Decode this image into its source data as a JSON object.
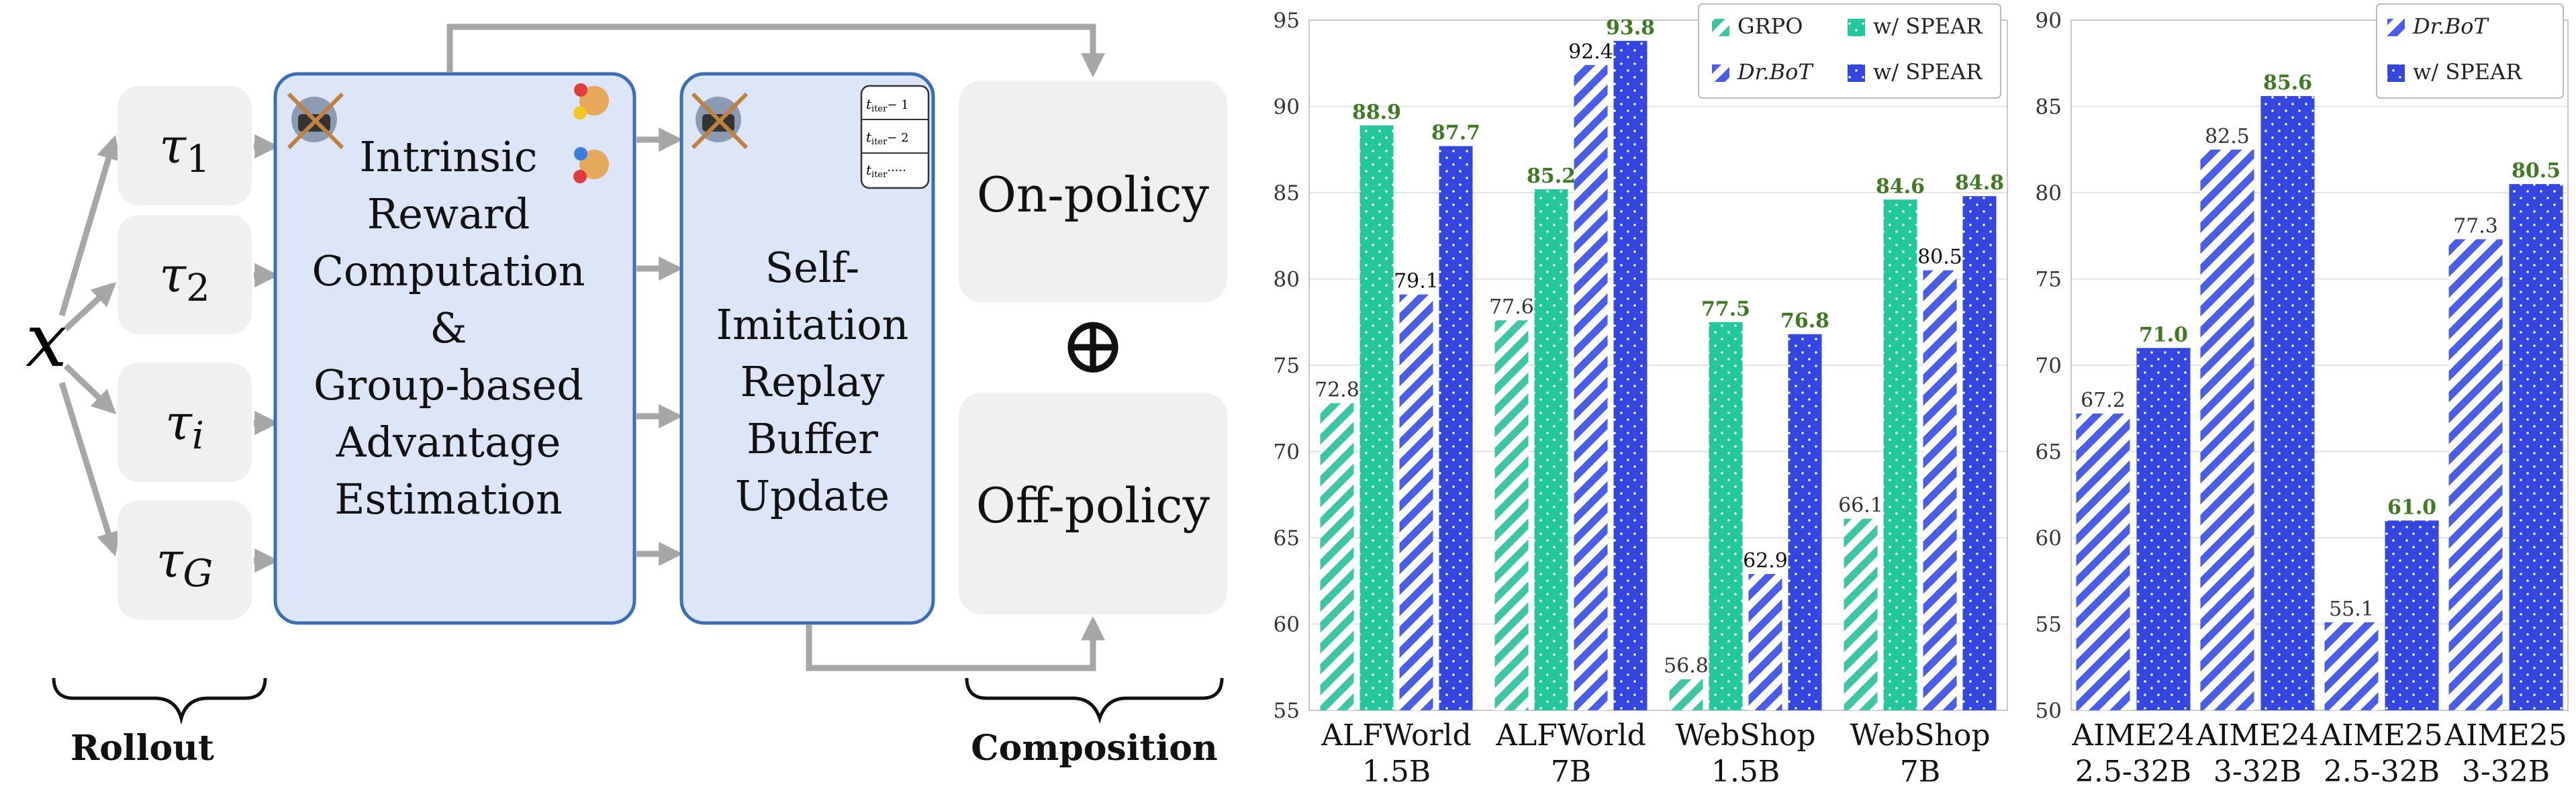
{
  "diagram": {
    "input_symbol": "x",
    "rollouts": [
      {
        "base": "τ",
        "sub": "1"
      },
      {
        "base": "τ",
        "sub": "2"
      },
      {
        "base": "τ",
        "sub": "i"
      },
      {
        "base": "τ",
        "sub": "G"
      }
    ],
    "rollout_label": "Rollout",
    "intrinsic_box": [
      "Intrinsic",
      "Reward",
      "Computation",
      "&",
      "Group-based",
      "Advantage",
      "Estimation"
    ],
    "replay_box": [
      "Self-",
      "Imitation",
      "Replay",
      "Buffer",
      "Update"
    ],
    "buffer_rows": [
      {
        "base": "t",
        "sub": "iter",
        "suffix": "− 1"
      },
      {
        "base": "t",
        "sub": "iter",
        "suffix": "− 2"
      },
      {
        "base": "t",
        "sub": "iter",
        "suffix": "·····"
      }
    ],
    "on_policy": "On-policy",
    "off_policy": "Off-policy",
    "composition_label": "Composition",
    "oplus": "⊕"
  },
  "colors": {
    "box_fill": "#dce6f8",
    "box_stroke": "#3b6fb5",
    "gray_box": "#f0f0f0",
    "arrow": "#a6a6a6",
    "grpo": "#3cc6a4",
    "grpo_spear": "#22c79b",
    "drbot": "#4a5de6",
    "drbot_spear": "#3346e0",
    "green_label": "#3e7a21"
  },
  "chart_data": [
    {
      "type": "bar",
      "categories": [
        "ALFWorld\n1.5B",
        "ALFWorld\n7B",
        "WebShop\n1.5B",
        "WebShop\n7B"
      ],
      "ylim": [
        55,
        95
      ],
      "yticks": [
        55,
        60,
        65,
        70,
        75,
        80,
        85,
        90,
        95
      ],
      "series": [
        {
          "name": "GRPO",
          "values": [
            72.8,
            77.6,
            56.8,
            66.1
          ]
        },
        {
          "name": "w/ SPEAR",
          "values": [
            88.9,
            85.2,
            77.5,
            84.6
          ]
        },
        {
          "name": "Dr.BoT",
          "values": [
            79.1,
            92.4,
            62.9,
            80.5
          ]
        },
        {
          "name": "w/ SPEAR",
          "values": [
            87.7,
            93.8,
            76.8,
            84.8
          ]
        }
      ],
      "labels": [
        [
          "72.8",
          "77.6",
          "56.8",
          "66.1"
        ],
        [
          "88.9",
          "85.2",
          "77.5",
          "84.6"
        ],
        [
          "79.1",
          "92.4",
          "62.9",
          "80.5"
        ],
        [
          "87.7",
          "93.8",
          "76.8",
          "84.8"
        ]
      ],
      "legend": "top-right"
    },
    {
      "type": "bar",
      "categories": [
        "AIME24\n2.5-32B",
        "AIME24\n3-32B",
        "AIME25\n2.5-32B",
        "AIME25\n3-32B"
      ],
      "ylim": [
        50,
        90
      ],
      "yticks": [
        50,
        55,
        60,
        65,
        70,
        75,
        80,
        85,
        90
      ],
      "series": [
        {
          "name": "Dr.BoT",
          "values": [
            67.2,
            82.5,
            55.1,
            77.3
          ]
        },
        {
          "name": "w/ SPEAR",
          "values": [
            71.0,
            85.6,
            61.0,
            80.5
          ]
        }
      ],
      "labels": [
        [
          "67.2",
          "82.5",
          "55.1",
          "77.3"
        ],
        [
          "71.0",
          "85.6",
          "61.0",
          "80.5"
        ]
      ],
      "legend": "top-right"
    }
  ]
}
